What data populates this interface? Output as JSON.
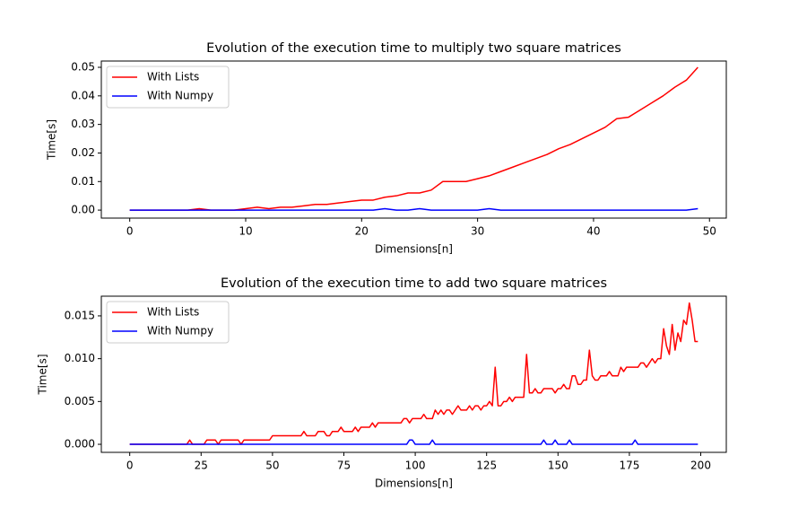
{
  "chart_data": [
    {
      "type": "line",
      "title": "Evolution of the execution time to multiply two square matrices",
      "xlabel": "Dimensions[n]",
      "ylabel": "Time[s]",
      "x": [
        0,
        1,
        2,
        3,
        4,
        5,
        6,
        7,
        8,
        9,
        10,
        11,
        12,
        13,
        14,
        15,
        16,
        17,
        18,
        19,
        20,
        21,
        22,
        23,
        24,
        25,
        26,
        27,
        28,
        29,
        30,
        31,
        32,
        33,
        34,
        35,
        36,
        37,
        38,
        39,
        40,
        41,
        42,
        43,
        44,
        45,
        46,
        47,
        48,
        49
      ],
      "series": [
        {
          "name": "With Lists",
          "color": "#ff0000",
          "values": [
            0,
            0,
            0,
            0,
            0,
            0,
            0.0005,
            0,
            0,
            0,
            0.0005,
            0.001,
            0.0005,
            0.001,
            0.001,
            0.0015,
            0.002,
            0.002,
            0.0025,
            0.003,
            0.0035,
            0.0035,
            0.0045,
            0.005,
            0.006,
            0.006,
            0.007,
            0.01,
            0.01,
            0.01,
            0.011,
            0.012,
            0.0135,
            0.015,
            0.0165,
            0.018,
            0.0195,
            0.0215,
            0.023,
            0.025,
            0.027,
            0.029,
            0.032,
            0.0325,
            0.035,
            0.0375,
            0.04,
            0.043,
            0.0455,
            0.05
          ]
        },
        {
          "name": "With Numpy",
          "color": "#0000ff",
          "values": [
            0,
            0,
            0,
            0,
            0,
            0,
            0,
            0,
            0,
            0,
            0,
            0,
            0,
            0,
            0,
            0,
            0,
            0,
            0,
            0,
            0,
            0,
            0.0005,
            0,
            0,
            0.0005,
            0,
            0,
            0,
            0,
            0,
            0.0005,
            0,
            0,
            0,
            0,
            0,
            0,
            0,
            0,
            0,
            0,
            0,
            0,
            0,
            0,
            0,
            0,
            0,
            0.0005
          ]
        }
      ],
      "xlim": [
        -2.45,
        51.45
      ],
      "xticks": [
        0,
        10,
        20,
        30,
        40,
        50
      ],
      "ylim": [
        -0.0028,
        0.0522
      ],
      "yticks": [
        {
          "value": 0,
          "label": "0.00"
        },
        0.01,
        0.02,
        0.03,
        0.04,
        0.05
      ],
      "legend": "upper left"
    },
    {
      "type": "line",
      "title": "Evolution of the execution time to add two square matrices",
      "xlabel": "Dimensions[n]",
      "ylabel": "Time[s]",
      "x": [
        0,
        1,
        2,
        3,
        4,
        5,
        6,
        7,
        8,
        9,
        10,
        11,
        12,
        13,
        14,
        15,
        16,
        17,
        18,
        19,
        20,
        21,
        22,
        23,
        24,
        25,
        26,
        27,
        28,
        29,
        30,
        31,
        32,
        33,
        34,
        35,
        36,
        37,
        38,
        39,
        40,
        41,
        42,
        43,
        44,
        45,
        46,
        47,
        48,
        49,
        50,
        51,
        52,
        53,
        54,
        55,
        56,
        57,
        58,
        59,
        60,
        61,
        62,
        63,
        64,
        65,
        66,
        67,
        68,
        69,
        70,
        71,
        72,
        73,
        74,
        75,
        76,
        77,
        78,
        79,
        80,
        81,
        82,
        83,
        84,
        85,
        86,
        87,
        88,
        89,
        90,
        91,
        92,
        93,
        94,
        95,
        96,
        97,
        98,
        99,
        100,
        101,
        102,
        103,
        104,
        105,
        106,
        107,
        108,
        109,
        110,
        111,
        112,
        113,
        114,
        115,
        116,
        117,
        118,
        119,
        120,
        121,
        122,
        123,
        124,
        125,
        126,
        127,
        128,
        129,
        130,
        131,
        132,
        133,
        134,
        135,
        136,
        137,
        138,
        139,
        140,
        141,
        142,
        143,
        144,
        145,
        146,
        147,
        148,
        149,
        150,
        151,
        152,
        153,
        154,
        155,
        156,
        157,
        158,
        159,
        160,
        161,
        162,
        163,
        164,
        165,
        166,
        167,
        168,
        169,
        170,
        171,
        172,
        173,
        174,
        175,
        176,
        177,
        178,
        179,
        180,
        181,
        182,
        183,
        184,
        185,
        186,
        187,
        188,
        189,
        190,
        191,
        192,
        193,
        194,
        195,
        196,
        197,
        198,
        199
      ],
      "series": [
        {
          "name": "With Lists",
          "color": "#ff0000",
          "values": [
            0,
            0,
            0,
            0,
            0,
            0,
            0,
            0,
            0,
            0,
            0,
            0,
            0,
            0,
            0,
            0,
            0,
            0,
            0,
            0,
            0,
            0.0005,
            0,
            0,
            0,
            0,
            0,
            0.0005,
            0.0005,
            0.0005,
            0.0005,
            0,
            0.0005,
            0.0005,
            0.0005,
            0.0005,
            0.0005,
            0.0005,
            0.0005,
            0,
            0.0005,
            0.0005,
            0.0005,
            0.0005,
            0.0005,
            0.0005,
            0.0005,
            0.0005,
            0.0005,
            0.0005,
            0.001,
            0.001,
            0.001,
            0.001,
            0.001,
            0.001,
            0.001,
            0.001,
            0.001,
            0.001,
            0.001,
            0.0015,
            0.001,
            0.001,
            0.001,
            0.001,
            0.0015,
            0.0015,
            0.0015,
            0.001,
            0.001,
            0.0015,
            0.0015,
            0.0015,
            0.002,
            0.0015,
            0.0015,
            0.0015,
            0.0015,
            0.002,
            0.0015,
            0.002,
            0.002,
            0.002,
            0.002,
            0.0025,
            0.002,
            0.0025,
            0.0025,
            0.0025,
            0.0025,
            0.0025,
            0.0025,
            0.0025,
            0.0025,
            0.0025,
            0.003,
            0.003,
            0.0025,
            0.003,
            0.003,
            0.003,
            0.003,
            0.0035,
            0.003,
            0.003,
            0.003,
            0.004,
            0.0035,
            0.004,
            0.0035,
            0.004,
            0.004,
            0.0035,
            0.004,
            0.0045,
            0.004,
            0.004,
            0.004,
            0.0045,
            0.004,
            0.0045,
            0.0045,
            0.004,
            0.0045,
            0.0045,
            0.005,
            0.0045,
            0.009,
            0.0045,
            0.0045,
            0.005,
            0.005,
            0.0055,
            0.005,
            0.0055,
            0.0055,
            0.0055,
            0.0055,
            0.0105,
            0.006,
            0.006,
            0.0065,
            0.006,
            0.006,
            0.0065,
            0.0065,
            0.0065,
            0.0065,
            0.006,
            0.0065,
            0.0065,
            0.007,
            0.0065,
            0.0065,
            0.008,
            0.008,
            0.007,
            0.007,
            0.0075,
            0.0075,
            0.011,
            0.008,
            0.0075,
            0.0075,
            0.008,
            0.008,
            0.008,
            0.0085,
            0.008,
            0.008,
            0.008,
            0.009,
            0.0085,
            0.009,
            0.009,
            0.009,
            0.009,
            0.009,
            0.0095,
            0.0095,
            0.009,
            0.0095,
            0.01,
            0.0095,
            0.01,
            0.01,
            0.0135,
            0.0115,
            0.0105,
            0.014,
            0.011,
            0.013,
            0.012,
            0.0145,
            0.014,
            0.0165,
            0.0145,
            0.012,
            0.012
          ]
        },
        {
          "name": "With Numpy",
          "color": "#0000ff",
          "values": [
            0,
            0,
            0,
            0,
            0,
            0,
            0,
            0,
            0,
            0,
            0,
            0,
            0,
            0,
            0,
            0,
            0,
            0,
            0,
            0,
            0,
            0,
            0,
            0,
            0,
            0,
            0,
            0,
            0,
            0,
            0,
            0,
            0,
            0,
            0,
            0,
            0,
            0,
            0,
            0,
            0,
            0,
            0,
            0,
            0,
            0,
            0,
            0,
            0,
            0,
            0,
            0,
            0,
            0,
            0,
            0,
            0,
            0,
            0,
            0,
            0,
            0,
            0,
            0,
            0,
            0,
            0,
            0,
            0,
            0,
            0,
            0,
            0,
            0,
            0,
            0,
            0,
            0,
            0,
            0,
            0,
            0,
            0,
            0,
            0,
            0,
            0,
            0,
            0,
            0,
            0,
            0,
            0,
            0,
            0,
            0,
            0,
            0,
            0.0005,
            0.0005,
            0,
            0,
            0,
            0,
            0,
            0,
            0.0005,
            0,
            0,
            0,
            0,
            0,
            0,
            0,
            0,
            0,
            0,
            0,
            0,
            0,
            0,
            0,
            0,
            0,
            0,
            0,
            0,
            0,
            0,
            0,
            0,
            0,
            0,
            0,
            0,
            0,
            0,
            0,
            0,
            0,
            0,
            0,
            0,
            0,
            0,
            0.0005,
            0,
            0,
            0,
            0.0005,
            0,
            0,
            0,
            0,
            0.0005,
            0,
            0,
            0,
            0,
            0,
            0,
            0,
            0,
            0,
            0,
            0,
            0,
            0,
            0,
            0,
            0,
            0,
            0,
            0,
            0,
            0,
            0,
            0.0005,
            0,
            0,
            0,
            0,
            0,
            0,
            0,
            0,
            0,
            0,
            0,
            0,
            0,
            0,
            0,
            0,
            0,
            0,
            0,
            0,
            0,
            0
          ]
        }
      ],
      "xlim": [
        -9.95,
        208.95
      ],
      "xticks": [
        0,
        25,
        50,
        75,
        100,
        125,
        150,
        175,
        200
      ],
      "ylim": [
        -0.00094,
        0.0173
      ],
      "yticks": [
        {
          "value": 0,
          "label": "0.000"
        },
        0.005,
        {
          "value": 0.01,
          "label": "0.010"
        },
        0.015
      ],
      "legend": "upper left"
    }
  ]
}
